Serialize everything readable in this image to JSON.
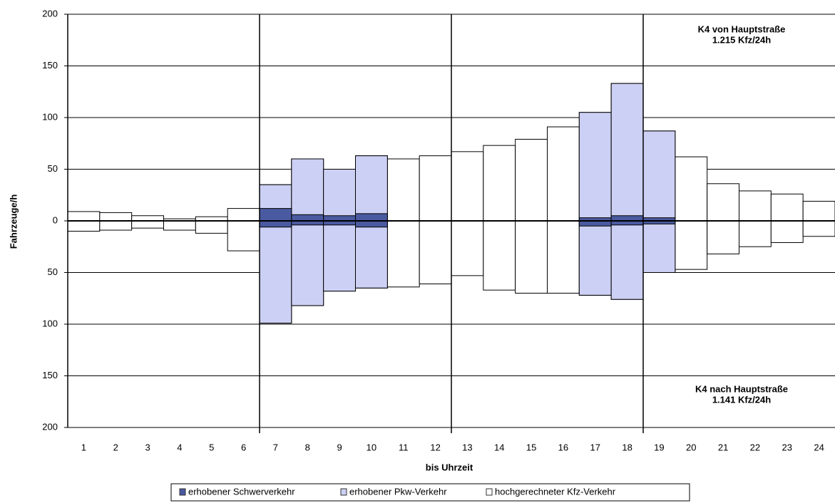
{
  "chart_data": {
    "type": "bidirectional-bar",
    "y_label": "Fahrzeuge/h",
    "x_label": "bis Uhrzeit",
    "annotations": [
      "K4 von Hauptstraße",
      "1.215 Kfz/24h",
      "K4 nach Hauptstraße",
      "1.141 Kfz/24h"
    ],
    "categories": [
      "1",
      "2",
      "3",
      "4",
      "5",
      "6",
      "7",
      "8",
      "9",
      "10",
      "11",
      "12",
      "13",
      "14",
      "15",
      "16",
      "17",
      "18",
      "19",
      "20",
      "21",
      "22",
      "23",
      "24"
    ],
    "ylim": [
      -200,
      200
    ],
    "yticks": [
      {
        "value": -200,
        "label": "200"
      },
      {
        "value": -150,
        "label": "150"
      },
      {
        "value": -100,
        "label": "100"
      },
      {
        "value": -50,
        "label": "50"
      },
      0,
      50,
      100,
      150,
      200
    ],
    "grid": true,
    "series": [
      {
        "name": "hochgerechneter Kfz-Verkehr",
        "color": "#ffffff",
        "values_von": [
          9,
          8,
          5,
          2,
          4,
          12,
          35,
          60,
          50,
          63,
          60,
          63,
          67,
          73,
          79,
          91,
          105,
          133,
          87,
          62,
          36,
          29,
          26,
          19
        ],
        "values_nach": [
          -10,
          -9,
          -7,
          -9,
          -12,
          -29,
          -99,
          -82,
          -68,
          -65,
          -64,
          -61,
          -53,
          -67,
          -70,
          -70,
          -72,
          -76,
          -50,
          -47,
          -32,
          -25,
          -21,
          -15
        ]
      },
      {
        "name": "erhobener Pkw-Verkehr",
        "color": "#ccd0f4",
        "values_von": [
          null,
          null,
          null,
          null,
          null,
          null,
          35,
          60,
          50,
          63,
          null,
          null,
          null,
          null,
          null,
          null,
          105,
          133,
          87,
          null,
          null,
          null,
          null,
          null
        ],
        "values_nach": [
          null,
          null,
          null,
          null,
          null,
          null,
          -99,
          -82,
          -68,
          -65,
          null,
          null,
          null,
          null,
          null,
          null,
          -72,
          -76,
          -50,
          null,
          null,
          null,
          null,
          null
        ]
      },
      {
        "name": "erhobener Schwerverkehr",
        "color": "#4a5aa0",
        "values_von": [
          null,
          null,
          null,
          null,
          null,
          null,
          12,
          6,
          5,
          7,
          null,
          null,
          null,
          null,
          null,
          null,
          3,
          5,
          3,
          null,
          null,
          null,
          null,
          null
        ],
        "values_nach": [
          null,
          null,
          null,
          null,
          null,
          null,
          -6,
          -4,
          -4,
          -6,
          null,
          null,
          null,
          null,
          null,
          null,
          -5,
          -4,
          -3,
          null,
          null,
          null,
          null,
          null
        ]
      }
    ]
  }
}
